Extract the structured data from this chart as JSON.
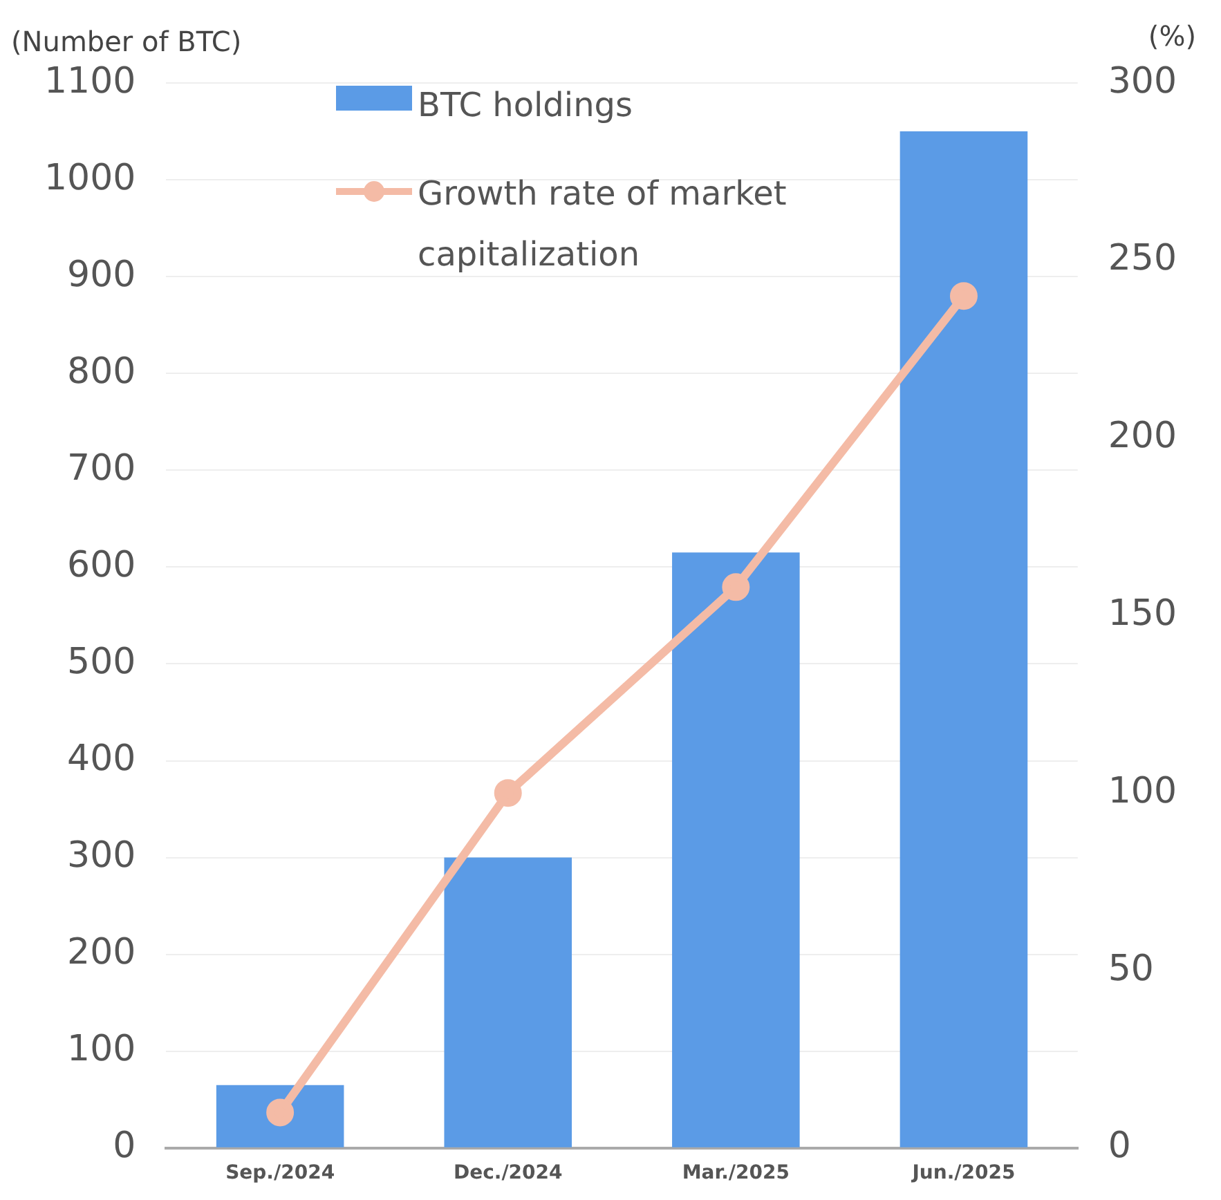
{
  "chart_data": {
    "type": "bar",
    "ylabel": "(Number of BTC)",
    "y2label": "(%)",
    "categories": [
      "Sep./2024",
      "Dec./2024",
      "Mar./2025",
      "Jun./2025"
    ],
    "series": [
      {
        "name": "BTC holdings",
        "color": "#5b9be6",
        "values": [
          65,
          300,
          615,
          1050
        ]
      },
      {
        "name": "Growth rate of market capitalization",
        "type": "line",
        "axis": "y2",
        "color": "#f4bba6",
        "marker": "circle",
        "values": [
          10,
          100,
          158,
          240
        ]
      }
    ],
    "ylim": [
      0,
      1100
    ],
    "yticks": [
      0,
      100,
      200,
      300,
      400,
      500,
      600,
      700,
      800,
      900,
      1000,
      1100
    ],
    "y2lim": [
      0,
      300
    ],
    "y2ticks": [
      0,
      50,
      100,
      150,
      200,
      250,
      300
    ],
    "grid": "y",
    "legend": "top left"
  }
}
